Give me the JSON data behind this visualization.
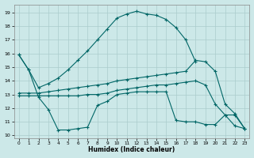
{
  "xlabel": "Humidex (Indice chaleur)",
  "background_color": "#cce8e8",
  "grid_color": "#aacccc",
  "line_color": "#006666",
  "xlim": [
    -0.5,
    23.5
  ],
  "ylim": [
    9.8,
    19.6
  ],
  "yticks": [
    10,
    11,
    12,
    13,
    14,
    15,
    16,
    17,
    18,
    19
  ],
  "xticks": [
    0,
    1,
    2,
    3,
    4,
    5,
    6,
    7,
    8,
    9,
    10,
    11,
    12,
    13,
    14,
    15,
    16,
    17,
    18,
    19,
    20,
    21,
    22,
    23
  ],
  "line1_x": [
    0,
    1,
    2,
    3,
    4,
    5,
    6,
    7,
    8,
    9,
    10,
    11,
    12,
    13,
    14,
    15,
    16,
    17,
    18
  ],
  "line1_y": [
    15.9,
    14.8,
    13.5,
    13.8,
    14.2,
    14.8,
    15.5,
    16.2,
    17.0,
    17.8,
    18.6,
    18.9,
    19.1,
    18.9,
    18.8,
    18.5,
    17.9,
    17.0,
    15.4
  ],
  "line2_x": [
    0,
    1,
    2,
    3,
    4,
    5,
    6,
    7,
    8,
    9,
    10,
    11,
    12,
    13,
    14,
    15,
    16,
    17,
    18,
    19,
    20,
    21,
    22,
    23
  ],
  "line2_y": [
    15.9,
    14.8,
    12.8,
    11.9,
    10.4,
    10.4,
    10.5,
    10.6,
    12.2,
    12.5,
    13.0,
    13.1,
    13.2,
    13.2,
    13.2,
    13.2,
    11.1,
    11.0,
    11.0,
    10.8,
    10.8,
    11.5,
    10.7,
    10.5
  ],
  "line3_x": [
    0,
    1,
    2,
    3,
    4,
    5,
    6,
    7,
    8,
    9,
    10,
    11,
    12,
    13,
    14,
    15,
    16,
    17,
    18,
    19,
    20,
    21,
    22,
    23
  ],
  "line3_y": [
    12.9,
    12.9,
    12.9,
    12.9,
    12.9,
    12.9,
    12.9,
    13.0,
    13.0,
    13.1,
    13.3,
    13.4,
    13.5,
    13.6,
    13.7,
    13.7,
    13.8,
    13.9,
    14.0,
    13.7,
    12.3,
    11.5,
    11.5,
    10.5
  ],
  "line4_x": [
    0,
    1,
    2,
    3,
    4,
    5,
    6,
    7,
    8,
    9,
    10,
    11,
    12,
    13,
    14,
    15,
    16,
    17,
    18,
    19,
    20,
    21,
    22,
    23
  ],
  "line4_y": [
    13.1,
    13.1,
    13.1,
    13.2,
    13.3,
    13.4,
    13.5,
    13.6,
    13.7,
    13.8,
    14.0,
    14.1,
    14.2,
    14.3,
    14.4,
    14.5,
    14.6,
    14.7,
    15.5,
    15.4,
    14.7,
    12.3,
    11.6,
    10.5
  ]
}
